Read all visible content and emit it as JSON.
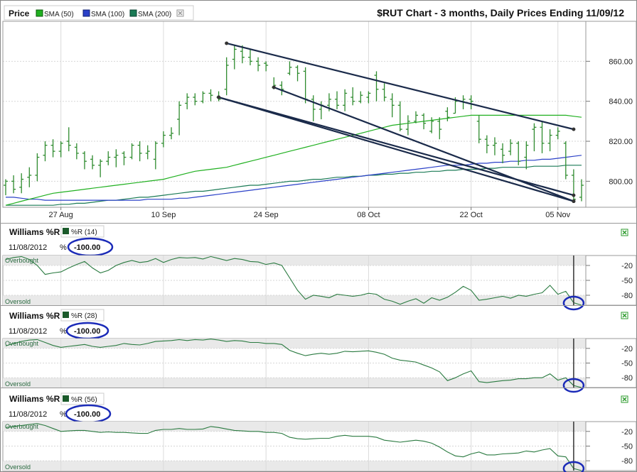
{
  "chart_data": [
    {
      "type": "ohlc",
      "panel": "price",
      "title": "$RUT Chart - 3 months, Daily Prices Ending 11/09/12",
      "legend_label": "Price",
      "legend": [
        "SMA (50)",
        "SMA (100)",
        "SMA (200)"
      ],
      "x_tick_labels": [
        "27 Aug",
        "10 Sep",
        "24 Sep",
        "08 Oct",
        "22 Oct",
        "05 Nov"
      ],
      "y_tick_labels": [
        "800.00",
        "820.00",
        "840.00",
        "860.00"
      ],
      "ylim": [
        787,
        880
      ],
      "grid": true,
      "legend_position": "top-left",
      "bars": [
        {
          "o": 798,
          "h": 801,
          "l": 793,
          "c": 800
        },
        {
          "o": 800,
          "h": 803,
          "l": 794,
          "c": 796
        },
        {
          "o": 797,
          "h": 804,
          "l": 794,
          "c": 801
        },
        {
          "o": 802,
          "h": 807,
          "l": 797,
          "c": 803
        },
        {
          "o": 803,
          "h": 814,
          "l": 800,
          "c": 812
        },
        {
          "o": 813,
          "h": 820,
          "l": 810,
          "c": 818
        },
        {
          "o": 818,
          "h": 821,
          "l": 812,
          "c": 815
        },
        {
          "o": 815,
          "h": 820,
          "l": 812,
          "c": 819
        },
        {
          "o": 820,
          "h": 827,
          "l": 815,
          "c": 818
        },
        {
          "o": 817,
          "h": 819,
          "l": 811,
          "c": 814
        },
        {
          "o": 814,
          "h": 815,
          "l": 806,
          "c": 810
        },
        {
          "o": 811,
          "h": 813,
          "l": 806,
          "c": 808
        },
        {
          "o": 808,
          "h": 811,
          "l": 802,
          "c": 810
        },
        {
          "o": 810,
          "h": 815,
          "l": 808,
          "c": 812
        },
        {
          "o": 812,
          "h": 816,
          "l": 807,
          "c": 813
        },
        {
          "o": 814,
          "h": 815,
          "l": 808,
          "c": 812
        },
        {
          "o": 812,
          "h": 819,
          "l": 811,
          "c": 818
        },
        {
          "o": 818,
          "h": 820,
          "l": 810,
          "c": 814
        },
        {
          "o": 814,
          "h": 818,
          "l": 811,
          "c": 815
        },
        {
          "o": 811,
          "h": 820,
          "l": 806,
          "c": 819
        },
        {
          "o": 819,
          "h": 825,
          "l": 817,
          "c": 823
        },
        {
          "o": 823,
          "h": 827,
          "l": 821,
          "c": 824
        },
        {
          "o": 831,
          "h": 840,
          "l": 823,
          "c": 838
        },
        {
          "o": 839,
          "h": 844,
          "l": 836,
          "c": 842
        },
        {
          "o": 842,
          "h": 844,
          "l": 838,
          "c": 840
        },
        {
          "o": 840,
          "h": 845,
          "l": 839,
          "c": 844
        },
        {
          "o": 844,
          "h": 846,
          "l": 840,
          "c": 843
        },
        {
          "o": 842,
          "h": 845,
          "l": 840,
          "c": 841
        },
        {
          "o": 846,
          "h": 862,
          "l": 843,
          "c": 858
        },
        {
          "o": 861,
          "h": 868,
          "l": 856,
          "c": 866
        },
        {
          "o": 865,
          "h": 868,
          "l": 859,
          "c": 862
        },
        {
          "o": 862,
          "h": 866,
          "l": 858,
          "c": 860
        },
        {
          "o": 860,
          "h": 862,
          "l": 855,
          "c": 858
        },
        {
          "o": 859,
          "h": 860,
          "l": 855,
          "c": 858
        },
        {
          "o": 847,
          "h": 852,
          "l": 846,
          "c": 848
        },
        {
          "o": 848,
          "h": 850,
          "l": 843,
          "c": 846
        },
        {
          "o": 854,
          "h": 860,
          "l": 853,
          "c": 857
        },
        {
          "o": 857,
          "h": 858,
          "l": 850,
          "c": 854
        },
        {
          "o": 855,
          "h": 857,
          "l": 839,
          "c": 841
        },
        {
          "o": 841,
          "h": 843,
          "l": 830,
          "c": 836
        },
        {
          "o": 836,
          "h": 840,
          "l": 831,
          "c": 838
        },
        {
          "o": 838,
          "h": 844,
          "l": 835,
          "c": 841
        },
        {
          "o": 841,
          "h": 845,
          "l": 836,
          "c": 838
        },
        {
          "o": 838,
          "h": 846,
          "l": 835,
          "c": 844
        },
        {
          "o": 842,
          "h": 847,
          "l": 838,
          "c": 840
        },
        {
          "o": 840,
          "h": 845,
          "l": 839,
          "c": 843
        },
        {
          "o": 842,
          "h": 845,
          "l": 839,
          "c": 844
        },
        {
          "o": 853,
          "h": 855,
          "l": 840,
          "c": 846
        },
        {
          "o": 846,
          "h": 849,
          "l": 840,
          "c": 842
        },
        {
          "o": 841,
          "h": 844,
          "l": 832,
          "c": 838
        },
        {
          "o": 838,
          "h": 840,
          "l": 825,
          "c": 826
        },
        {
          "o": 826,
          "h": 833,
          "l": 823,
          "c": 830
        },
        {
          "o": 830,
          "h": 835,
          "l": 829,
          "c": 833
        },
        {
          "o": 833,
          "h": 834,
          "l": 826,
          "c": 829
        },
        {
          "o": 825,
          "h": 832,
          "l": 824,
          "c": 830
        },
        {
          "o": 830,
          "h": 832,
          "l": 821,
          "c": 826
        },
        {
          "o": 835,
          "h": 837,
          "l": 830,
          "c": 832
        },
        {
          "o": 834,
          "h": 842,
          "l": 834,
          "c": 840
        },
        {
          "o": 840,
          "h": 843,
          "l": 836,
          "c": 841
        },
        {
          "o": 841,
          "h": 843,
          "l": 836,
          "c": 840
        },
        {
          "o": 830,
          "h": 833,
          "l": 819,
          "c": 821
        },
        {
          "o": 821,
          "h": 823,
          "l": 814,
          "c": 818
        },
        {
          "o": 818,
          "h": 822,
          "l": 813,
          "c": 819
        },
        {
          "o": 816,
          "h": 819,
          "l": 809,
          "c": 813
        },
        {
          "o": 815,
          "h": 821,
          "l": 813,
          "c": 819
        },
        {
          "o": 819,
          "h": 820,
          "l": 808,
          "c": 810
        },
        {
          "o": 812,
          "h": 820,
          "l": 806,
          "c": 818
        },
        {
          "o": 826,
          "h": 829,
          "l": 815,
          "c": 827
        },
        {
          "o": 827,
          "h": 830,
          "l": 814,
          "c": 819
        },
        {
          "o": 819,
          "h": 826,
          "l": 815,
          "c": 823
        },
        {
          "o": 823,
          "h": 827,
          "l": 821,
          "c": 825
        },
        {
          "o": 819,
          "h": 820,
          "l": 801,
          "c": 803
        },
        {
          "o": 803,
          "h": 806,
          "l": 790,
          "c": 791
        },
        {
          "o": 792,
          "h": 801,
          "l": 790,
          "c": 798
        }
      ],
      "sma50": [
        788,
        789,
        790,
        791,
        792,
        793,
        794,
        794.5,
        795,
        795.5,
        796,
        796.5,
        797,
        797.5,
        798,
        798.5,
        799,
        799.5,
        800,
        800.5,
        801,
        802,
        803,
        804,
        805,
        805.5,
        806,
        806.5,
        807,
        808,
        809,
        810,
        811,
        812,
        813,
        814,
        815,
        816,
        817,
        818,
        819,
        820,
        821,
        822,
        823,
        824,
        825,
        826,
        827,
        828,
        828.5,
        829,
        829.5,
        830,
        830.5,
        831,
        831.5,
        832,
        832.5,
        833,
        833,
        833,
        833,
        833,
        833,
        833,
        833,
        833,
        833,
        833,
        833,
        833,
        832.5,
        832
      ],
      "sma100": [
        792,
        792,
        791.5,
        791,
        791,
        790.5,
        790.5,
        790.5,
        790.5,
        790.5,
        790.5,
        790.5,
        790.5,
        790.5,
        790.5,
        790.5,
        790.5,
        790.5,
        791,
        791,
        791,
        791,
        791.5,
        791.5,
        792,
        792.5,
        793,
        793.5,
        794,
        794.5,
        795,
        795.5,
        796,
        796.5,
        797,
        797.5,
        798,
        798.5,
        799,
        799.5,
        800,
        800.5,
        801,
        801.5,
        802,
        802.5,
        803,
        803.5,
        804,
        804.5,
        805,
        805.5,
        806,
        806.5,
        807,
        807.5,
        808,
        808,
        808,
        808.5,
        809,
        809,
        809.5,
        809.5,
        810,
        810,
        810.5,
        810.5,
        811,
        811,
        811.5,
        812,
        812.5,
        813
      ],
      "sma200": [
        788,
        788,
        788,
        788,
        788,
        788,
        788,
        788.5,
        788.5,
        789,
        789,
        789.5,
        790,
        790.5,
        790.5,
        791,
        791.5,
        792,
        792,
        792.5,
        793,
        793.5,
        794,
        794.5,
        795,
        795,
        795.5,
        796,
        796.5,
        797,
        797.5,
        798,
        798,
        798.5,
        799,
        799.5,
        800,
        800,
        800.5,
        801,
        801,
        801.5,
        802,
        802,
        802.5,
        802.5,
        803,
        803,
        803.5,
        803.5,
        804,
        804,
        804.5,
        804.5,
        805,
        805,
        805.5,
        805.5,
        806,
        806,
        806,
        806.5,
        806.5,
        807,
        807,
        807,
        807,
        807.5,
        807.5,
        807.5,
        807.5,
        808,
        808,
        808
      ],
      "trendlines": [
        {
          "x1": 28,
          "y1": 869,
          "x2": 72,
          "y2": 826
        },
        {
          "x1": 27,
          "y1": 842,
          "x2": 72,
          "y2": 790
        },
        {
          "x1": 34,
          "y1": 847,
          "x2": 72,
          "y2": 790
        },
        {
          "x1": 27,
          "y1": 842,
          "x2": 72,
          "y2": 793
        }
      ]
    },
    {
      "type": "line",
      "panel": "williams-14",
      "title": "Williams %R",
      "legend": [
        "%R (14)"
      ],
      "date": "11/08/2012",
      "readout_prefix": "%",
      "readout": "-100.00",
      "zone_labels": {
        "overbought": "Overbought",
        "oversold": "Oversold"
      },
      "y_tick_labels": [
        "-20",
        "-50",
        "-80"
      ],
      "ylim": [
        -100,
        0
      ],
      "values": [
        -8,
        -4,
        -2,
        -8,
        -20,
        -38,
        -35,
        -33,
        -25,
        -18,
        -12,
        -25,
        -35,
        -30,
        -20,
        -14,
        -10,
        -14,
        -12,
        -6,
        -14,
        -8,
        -4,
        -5,
        -4,
        -7,
        -2,
        -6,
        -10,
        -6,
        -8,
        -12,
        -13,
        -18,
        -15,
        -20,
        -45,
        -70,
        -88,
        -80,
        -82,
        -85,
        -78,
        -80,
        -82,
        -80,
        -76,
        -78,
        -88,
        -92,
        -98,
        -92,
        -87,
        -96,
        -85,
        -90,
        -84,
        -74,
        -62,
        -70,
        -90,
        -88,
        -85,
        -82,
        -86,
        -80,
        -82,
        -78,
        -75,
        -60,
        -78,
        -72,
        -95,
        -100
      ]
    },
    {
      "type": "line",
      "panel": "williams-28",
      "title": "Williams %R",
      "legend": [
        "%R (28)"
      ],
      "date": "11/08/2012",
      "readout_prefix": "%",
      "readout": "-100.00",
      "zone_labels": {
        "overbought": "Overbought",
        "oversold": "Oversold"
      },
      "y_tick_labels": [
        "-20",
        "-50",
        "-80"
      ],
      "ylim": [
        -100,
        0
      ],
      "values": [
        -15,
        -10,
        -6,
        -3,
        -2,
        -8,
        -14,
        -18,
        -16,
        -14,
        -12,
        -16,
        -18,
        -16,
        -14,
        -10,
        -12,
        -13,
        -10,
        -6,
        -5,
        -4,
        -2,
        -4,
        -2,
        -3,
        -1,
        -3,
        -6,
        -4,
        -5,
        -8,
        -8,
        -10,
        -10,
        -12,
        -24,
        -30,
        -35,
        -32,
        -30,
        -32,
        -30,
        -26,
        -27,
        -26,
        -25,
        -28,
        -32,
        -40,
        -44,
        -46,
        -48,
        -54,
        -60,
        -68,
        -86,
        -80,
        -72,
        -66,
        -88,
        -90,
        -88,
        -86,
        -85,
        -82,
        -82,
        -80,
        -80,
        -72,
        -85,
        -80,
        -96,
        -100
      ]
    },
    {
      "type": "line",
      "panel": "williams-56",
      "title": "Williams %R",
      "legend": [
        "%R (56)"
      ],
      "date": "11/08/2012",
      "readout_prefix": "%",
      "readout": "-100.00",
      "zone_labels": {
        "overbought": "Overbought",
        "oversold": "Oversold"
      },
      "y_tick_labels": [
        "-20",
        "-50",
        "-80"
      ],
      "ylim": [
        -100,
        0
      ],
      "values": [
        -12,
        -10,
        -8,
        -6,
        -4,
        -8,
        -14,
        -20,
        -19,
        -18,
        -18,
        -20,
        -22,
        -21,
        -22,
        -22,
        -23,
        -24,
        -24,
        -18,
        -16,
        -16,
        -14,
        -16,
        -16,
        -15,
        -10,
        -12,
        -15,
        -18,
        -19,
        -20,
        -20,
        -22,
        -22,
        -24,
        -32,
        -35,
        -36,
        -35,
        -34,
        -34,
        -30,
        -28,
        -30,
        -30,
        -30,
        -32,
        -38,
        -40,
        -42,
        -40,
        -38,
        -40,
        -44,
        -52,
        -62,
        -70,
        -72,
        -66,
        -62,
        -68,
        -68,
        -66,
        -65,
        -64,
        -60,
        -62,
        -58,
        -55,
        -70,
        -72,
        -96,
        -100
      ]
    }
  ],
  "colors": {
    "bars": "#2e8b2e",
    "sma50": "#20b020",
    "sma100": "#2a40c8",
    "sma200": "#1a7a55",
    "trendline": "#1a2a4a",
    "wr_line": "#2a7a40",
    "zone": "#e9e9e9",
    "circle": "#1a2ab8",
    "grid": "#d6d6d6",
    "grid_vertical": "#dadada"
  },
  "icons": {
    "legend_swatch_sma50": "green-square",
    "legend_swatch_sma100": "blue-square",
    "legend_swatch_sma200": "teal-square",
    "legend_close": "close-icon",
    "panel_close": "green-x-icon"
  }
}
